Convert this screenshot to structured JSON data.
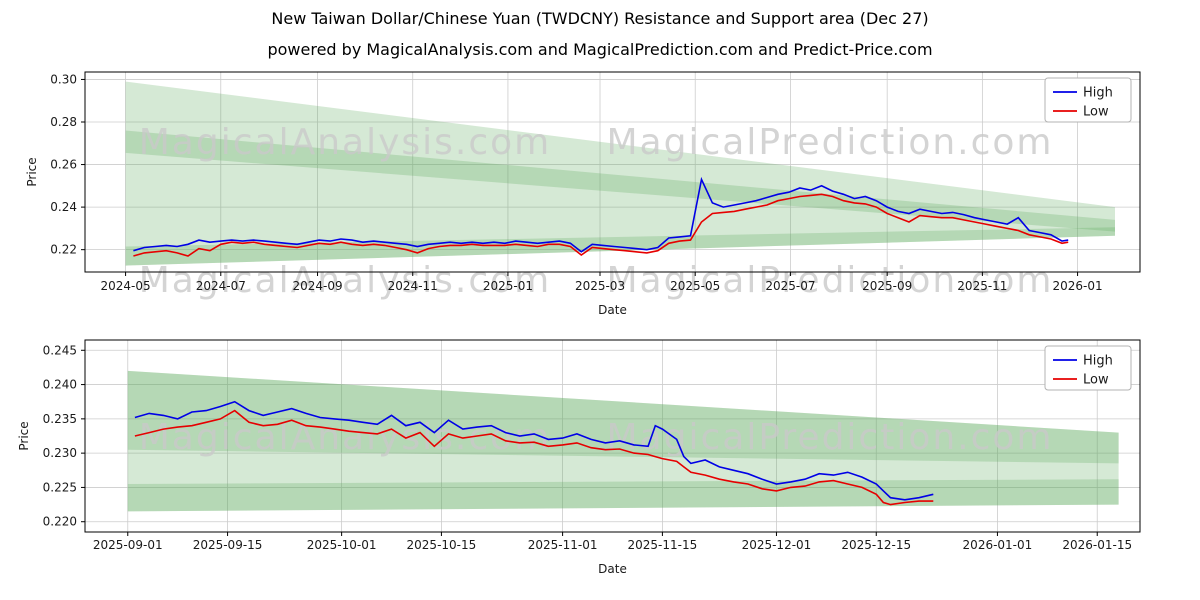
{
  "title": "New Taiwan Dollar/Chinese Yuan (TWDCNY) Resistance and Support area (Dec 27)",
  "subtitle": "powered by MagicalAnalysis.com and MagicalPrediction.com and Predict-Price.com",
  "watermarks": {
    "left": "MagicalAnalysis.com",
    "right": "MagicalPrediction.com"
  },
  "legend": {
    "items": [
      "High",
      "Low"
    ],
    "position": "upper right"
  },
  "colors": {
    "high": "#0000e6",
    "low": "#e60000",
    "band": "#57a857",
    "grid": "#cccccc",
    "watermark": "#c9c9c9",
    "text": "#1a1a1a",
    "spine": "#000000"
  },
  "chart_data": [
    {
      "type": "line",
      "title": "",
      "xlabel": "Date",
      "ylabel": "Price",
      "grid": true,
      "legend_position": "upper right",
      "xlim": [
        "2024-04-05",
        "2026-02-10"
      ],
      "ylim": [
        0.2095,
        0.3035
      ],
      "yticks": [
        0.22,
        0.24,
        0.26,
        0.28,
        0.3
      ],
      "ytick_labels": [
        "0.22",
        "0.24",
        "0.26",
        "0.28",
        "0.30"
      ],
      "xticks": [
        {
          "date": "2024-05-01",
          "label": "2024-05"
        },
        {
          "date": "2024-07-01",
          "label": "2024-07"
        },
        {
          "date": "2024-09-01",
          "label": "2024-09"
        },
        {
          "date": "2024-11-01",
          "label": "2024-11"
        },
        {
          "date": "2025-01-01",
          "label": "2025-01"
        },
        {
          "date": "2025-03-01",
          "label": "2025-03"
        },
        {
          "date": "2025-05-01",
          "label": "2025-05"
        },
        {
          "date": "2025-07-01",
          "label": "2025-07"
        },
        {
          "date": "2025-09-01",
          "label": "2025-09"
        },
        {
          "date": "2025-11-01",
          "label": "2025-11"
        },
        {
          "date": "2026-01-01",
          "label": "2026-01"
        }
      ],
      "x": [
        "2024-05-06",
        "2024-05-13",
        "2024-05-20",
        "2024-05-27",
        "2024-06-03",
        "2024-06-10",
        "2024-06-17",
        "2024-06-24",
        "2024-07-01",
        "2024-07-08",
        "2024-07-15",
        "2024-07-22",
        "2024-07-29",
        "2024-08-05",
        "2024-08-12",
        "2024-08-19",
        "2024-08-26",
        "2024-09-02",
        "2024-09-09",
        "2024-09-16",
        "2024-09-23",
        "2024-09-30",
        "2024-10-07",
        "2024-10-14",
        "2024-10-21",
        "2024-10-28",
        "2024-11-04",
        "2024-11-11",
        "2024-11-18",
        "2024-11-25",
        "2024-12-02",
        "2024-12-09",
        "2024-12-16",
        "2024-12-23",
        "2024-12-30",
        "2025-01-06",
        "2025-01-13",
        "2025-01-20",
        "2025-01-27",
        "2025-02-03",
        "2025-02-10",
        "2025-02-17",
        "2025-02-24",
        "2025-03-03",
        "2025-03-10",
        "2025-03-17",
        "2025-03-24",
        "2025-03-31",
        "2025-04-07",
        "2025-04-14",
        "2025-04-21",
        "2025-04-28",
        "2025-05-05",
        "2025-05-12",
        "2025-05-19",
        "2025-05-26",
        "2025-06-02",
        "2025-06-09",
        "2025-06-16",
        "2025-06-23",
        "2025-06-30",
        "2025-07-07",
        "2025-07-14",
        "2025-07-21",
        "2025-07-28",
        "2025-08-04",
        "2025-08-11",
        "2025-08-18",
        "2025-08-25",
        "2025-09-01",
        "2025-09-08",
        "2025-09-15",
        "2025-09-22",
        "2025-09-29",
        "2025-10-06",
        "2025-10-13",
        "2025-10-20",
        "2025-10-27",
        "2025-11-03",
        "2025-11-10",
        "2025-11-17",
        "2025-11-24",
        "2025-12-01",
        "2025-12-08",
        "2025-12-15",
        "2025-12-22",
        "2025-12-26"
      ],
      "series": [
        {
          "name": "High",
          "values": [
            0.2195,
            0.221,
            0.2215,
            0.222,
            0.2215,
            0.2225,
            0.2245,
            0.2235,
            0.224,
            0.2245,
            0.224,
            0.2245,
            0.224,
            0.2235,
            0.223,
            0.2225,
            0.2235,
            0.2245,
            0.224,
            0.225,
            0.2245,
            0.2235,
            0.224,
            0.2235,
            0.223,
            0.2225,
            0.2215,
            0.2225,
            0.223,
            0.2235,
            0.223,
            0.2235,
            0.223,
            0.2235,
            0.223,
            0.224,
            0.2235,
            0.223,
            0.2235,
            0.224,
            0.223,
            0.219,
            0.2225,
            0.222,
            0.2215,
            0.221,
            0.2205,
            0.22,
            0.221,
            0.2255,
            0.226,
            0.2265,
            0.253,
            0.242,
            0.24,
            0.241,
            0.242,
            0.243,
            0.2445,
            0.246,
            0.247,
            0.249,
            0.248,
            0.25,
            0.2475,
            0.246,
            0.244,
            0.245,
            0.243,
            0.24,
            0.238,
            0.237,
            0.239,
            0.238,
            0.237,
            0.2375,
            0.2365,
            0.235,
            0.234,
            0.233,
            0.232,
            0.235,
            0.229,
            0.228,
            0.227,
            0.224,
            0.2245
          ]
        },
        {
          "name": "Low",
          "values": [
            0.217,
            0.2185,
            0.219,
            0.2195,
            0.2185,
            0.217,
            0.2205,
            0.2195,
            0.2225,
            0.2235,
            0.223,
            0.2235,
            0.2225,
            0.222,
            0.2215,
            0.221,
            0.222,
            0.223,
            0.2225,
            0.2235,
            0.2225,
            0.222,
            0.2225,
            0.222,
            0.221,
            0.22,
            0.2185,
            0.2205,
            0.2215,
            0.222,
            0.222,
            0.2225,
            0.222,
            0.222,
            0.222,
            0.2225,
            0.222,
            0.2215,
            0.2225,
            0.2225,
            0.2215,
            0.2175,
            0.221,
            0.2205,
            0.22,
            0.2195,
            0.219,
            0.2185,
            0.2195,
            0.223,
            0.224,
            0.2245,
            0.233,
            0.237,
            0.2375,
            0.238,
            0.239,
            0.24,
            0.241,
            0.243,
            0.244,
            0.245,
            0.2455,
            0.246,
            0.245,
            0.243,
            0.242,
            0.2415,
            0.24,
            0.237,
            0.235,
            0.233,
            0.236,
            0.2355,
            0.235,
            0.235,
            0.234,
            0.233,
            0.232,
            0.231,
            0.23,
            0.229,
            0.227,
            0.226,
            0.225,
            0.223,
            0.2235
          ]
        }
      ],
      "bands": [
        {
          "x0": "2024-05-01",
          "x1": "2026-01-25",
          "top": [
            0.299,
            0.24
          ],
          "bottom": [
            0.2125,
            0.2265
          ],
          "opacity": 0.25
        },
        {
          "x0": "2024-05-01",
          "x1": "2026-01-25",
          "top": [
            0.276,
            0.234
          ],
          "bottom": [
            0.2655,
            0.2285
          ],
          "opacity": 0.25
        },
        {
          "x0": "2024-05-01",
          "x1": "2026-01-25",
          "top": [
            0.2215,
            0.2305
          ],
          "bottom": [
            0.2125,
            0.2265
          ],
          "opacity": 0.25
        }
      ]
    },
    {
      "type": "line",
      "title": "",
      "xlabel": "Date",
      "ylabel": "Price",
      "grid": true,
      "legend_position": "upper right",
      "xlim": [
        "2025-08-26",
        "2026-01-21"
      ],
      "ylim": [
        0.2185,
        0.2465
      ],
      "yticks": [
        0.22,
        0.225,
        0.23,
        0.235,
        0.24,
        0.245
      ],
      "ytick_labels": [
        "0.220",
        "0.225",
        "0.230",
        "0.235",
        "0.240",
        "0.245"
      ],
      "xticks": [
        {
          "date": "2025-09-01",
          "label": "2025-09-01"
        },
        {
          "date": "2025-09-15",
          "label": "2025-09-15"
        },
        {
          "date": "2025-10-01",
          "label": "2025-10-01"
        },
        {
          "date": "2025-10-15",
          "label": "2025-10-15"
        },
        {
          "date": "2025-11-01",
          "label": "2025-11-01"
        },
        {
          "date": "2025-11-15",
          "label": "2025-11-15"
        },
        {
          "date": "2025-12-01",
          "label": "2025-12-01"
        },
        {
          "date": "2025-12-15",
          "label": "2025-12-15"
        },
        {
          "date": "2026-01-01",
          "label": "2026-01-01"
        },
        {
          "date": "2026-01-15",
          "label": "2026-01-15"
        }
      ],
      "x": [
        "2025-09-02",
        "2025-09-04",
        "2025-09-06",
        "2025-09-08",
        "2025-09-10",
        "2025-09-12",
        "2025-09-14",
        "2025-09-16",
        "2025-09-18",
        "2025-09-20",
        "2025-09-22",
        "2025-09-24",
        "2025-09-26",
        "2025-09-28",
        "2025-09-30",
        "2025-10-02",
        "2025-10-04",
        "2025-10-06",
        "2025-10-08",
        "2025-10-10",
        "2025-10-12",
        "2025-10-14",
        "2025-10-16",
        "2025-10-18",
        "2025-10-20",
        "2025-10-22",
        "2025-10-24",
        "2025-10-26",
        "2025-10-28",
        "2025-10-30",
        "2025-11-01",
        "2025-11-03",
        "2025-11-05",
        "2025-11-07",
        "2025-11-09",
        "2025-11-11",
        "2025-11-13",
        "2025-11-14",
        "2025-11-15",
        "2025-11-17",
        "2025-11-18",
        "2025-11-19",
        "2025-11-21",
        "2025-11-23",
        "2025-11-25",
        "2025-11-27",
        "2025-11-29",
        "2025-12-01",
        "2025-12-03",
        "2025-12-05",
        "2025-12-07",
        "2025-12-09",
        "2025-12-11",
        "2025-12-13",
        "2025-12-15",
        "2025-12-16",
        "2025-12-17",
        "2025-12-19",
        "2025-12-21",
        "2025-12-23"
      ],
      "series": [
        {
          "name": "High",
          "values": [
            0.2352,
            0.2358,
            0.2355,
            0.235,
            0.236,
            0.2362,
            0.2368,
            0.2375,
            0.2362,
            0.2355,
            0.236,
            0.2365,
            0.2358,
            0.2352,
            0.235,
            0.2348,
            0.2345,
            0.2342,
            0.2355,
            0.234,
            0.2345,
            0.233,
            0.2348,
            0.2335,
            0.2338,
            0.234,
            0.233,
            0.2325,
            0.2328,
            0.232,
            0.2322,
            0.2328,
            0.232,
            0.2315,
            0.2318,
            0.2312,
            0.231,
            0.234,
            0.2335,
            0.232,
            0.2295,
            0.2285,
            0.229,
            0.228,
            0.2275,
            0.227,
            0.2262,
            0.2255,
            0.2258,
            0.2262,
            0.227,
            0.2268,
            0.2272,
            0.2265,
            0.2255,
            0.2245,
            0.2235,
            0.2232,
            0.2235,
            0.224
          ]
        },
        {
          "name": "Low",
          "values": [
            0.2325,
            0.233,
            0.2335,
            0.2338,
            0.234,
            0.2345,
            0.235,
            0.2362,
            0.2345,
            0.234,
            0.2342,
            0.2348,
            0.234,
            0.2338,
            0.2335,
            0.2332,
            0.233,
            0.2328,
            0.2335,
            0.2322,
            0.233,
            0.231,
            0.2328,
            0.2322,
            0.2325,
            0.2328,
            0.2318,
            0.2315,
            0.2316,
            0.231,
            0.2312,
            0.2315,
            0.2308,
            0.2305,
            0.2306,
            0.23,
            0.2298,
            0.2295,
            0.2292,
            0.2288,
            0.228,
            0.2272,
            0.2268,
            0.2262,
            0.2258,
            0.2255,
            0.2248,
            0.2245,
            0.225,
            0.2252,
            0.2258,
            0.226,
            0.2255,
            0.225,
            0.224,
            0.2228,
            0.2225,
            0.2228,
            0.223,
            0.223
          ]
        }
      ],
      "bands": [
        {
          "x0": "2025-09-01",
          "x1": "2026-01-18",
          "top": [
            0.242,
            0.233
          ],
          "bottom": [
            0.2215,
            0.2225
          ],
          "opacity": 0.25
        },
        {
          "x0": "2025-09-01",
          "x1": "2026-01-18",
          "top": [
            0.242,
            0.233
          ],
          "bottom": [
            0.2305,
            0.2285
          ],
          "opacity": 0.25
        },
        {
          "x0": "2025-09-01",
          "x1": "2026-01-18",
          "top": [
            0.2255,
            0.2262
          ],
          "bottom": [
            0.2215,
            0.2225
          ],
          "opacity": 0.25
        }
      ]
    }
  ]
}
